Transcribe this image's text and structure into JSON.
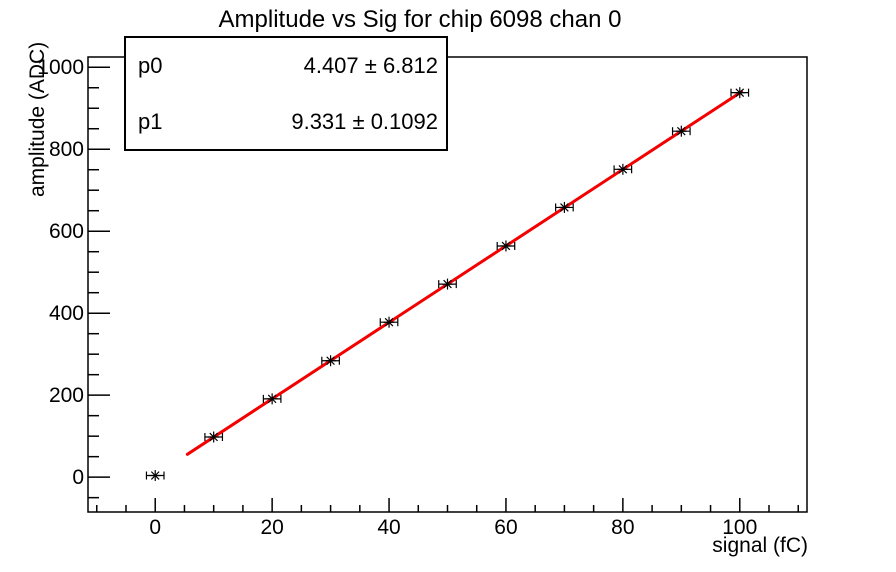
{
  "canvas": {
    "background": "#ffffff",
    "frame_color": "#000000"
  },
  "chart_data": {
    "type": "scatter",
    "title": "Amplitude vs Sig for chip 6098 chan 0",
    "xlabel": "signal (fC)",
    "ylabel": "amplitude (ADC)",
    "xlim": [
      -11.5,
      111.5
    ],
    "ylim": [
      -85,
      1025
    ],
    "grid": false,
    "legend": "none",
    "x_major_ticks": [
      0,
      20,
      40,
      60,
      80,
      100
    ],
    "x_minor_step": 5,
    "y_major_ticks": [
      0,
      200,
      400,
      600,
      800,
      1000
    ],
    "y_minor_step": 50,
    "points": {
      "x": [
        0,
        10,
        20,
        30,
        40,
        50,
        60,
        70,
        80,
        90,
        100
      ],
      "y": [
        4,
        98,
        191,
        284,
        378,
        471,
        564,
        658,
        751,
        844,
        938
      ],
      "x_err": 1.5,
      "marker": "asterisk",
      "color": "#000000"
    },
    "fit_line": {
      "p0": 4.407,
      "p0_err": 6.812,
      "p1": 9.331,
      "p1_err": 0.1092,
      "x_start": 5.5,
      "x_end": 100.3,
      "color": "#f40000",
      "width": 3
    },
    "stats_box": {
      "rows": [
        {
          "label": "p0",
          "value": "4.407 ± 6.812"
        },
        {
          "label": "p1",
          "value": "9.331 ± 0.1092"
        }
      ]
    }
  }
}
